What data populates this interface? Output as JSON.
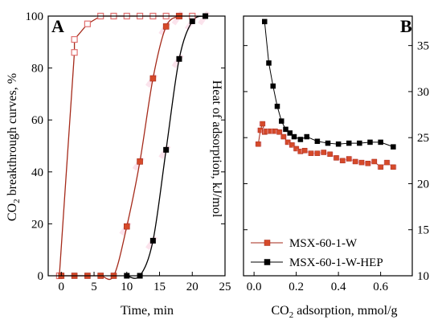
{
  "colors": {
    "msx_w": "#a52a1a",
    "msx_w_fill": "#d64a2a",
    "msx_w_hep": "#000000",
    "highlight": "#f7c0d4",
    "open_marker": "#e07070"
  },
  "chart_data": [
    {
      "type": "line",
      "panel_label": "A",
      "xlabel": "Time, min",
      "ylabel": "CO2 breakthrough curves, %",
      "ylabel_parts": {
        "base": "CO",
        "sub": "2",
        "rest": " breakthrough curves, %"
      },
      "ylabel_right": "Heat of adsorption, kJ/mol",
      "xlim": [
        -2,
        25
      ],
      "ylim": [
        0,
        100
      ],
      "xticks": [
        0,
        5,
        10,
        15,
        20,
        25
      ],
      "yticks": [
        0,
        20,
        40,
        60,
        80,
        100
      ],
      "series": [
        {
          "style": "open-square",
          "color_key": "open_marker",
          "x": [
            -0.3,
            2,
            2,
            4,
            6,
            8,
            10,
            12,
            14,
            16,
            18,
            20
          ],
          "y": [
            0,
            86,
            91,
            97,
            100,
            100,
            100,
            100,
            100,
            100,
            100,
            100
          ]
        },
        {
          "style": "filled-square",
          "color_key": "msx_w_fill",
          "x": [
            0,
            2,
            4,
            6,
            8,
            10,
            12,
            14,
            16,
            18
          ],
          "y": [
            0,
            0,
            0,
            0,
            0,
            19,
            44,
            76,
            96,
            100
          ]
        },
        {
          "style": "black-square",
          "color_key": "msx_w_hep",
          "x": [
            10,
            12,
            14,
            16,
            18,
            20,
            22
          ],
          "y": [
            0,
            0,
            13.5,
            48.5,
            83.5,
            98,
            100
          ]
        }
      ]
    },
    {
      "type": "scatter",
      "panel_label": "B",
      "xlabel": "CO2 adsorption, mmol/g",
      "xlabel_parts": {
        "base": "CO",
        "sub": "2",
        "rest": " adsorption, mmol/g"
      },
      "xlim": [
        -0.05,
        0.75
      ],
      "ylim": [
        10,
        38.2
      ],
      "xticks": [
        0.0,
        0.2,
        0.4,
        0.6
      ],
      "xtick_labels": [
        "0.0",
        "0.2",
        "0.4",
        "0.6"
      ],
      "yticks": [
        10,
        15,
        20,
        25,
        30,
        35
      ],
      "legend_position": "bottom-left",
      "series": [
        {
          "name": "MSX-60-1-W",
          "color_key": "msx_w",
          "x": [
            0.02,
            0.03,
            0.04,
            0.05,
            0.06,
            0.08,
            0.1,
            0.12,
            0.14,
            0.16,
            0.18,
            0.2,
            0.22,
            0.24,
            0.27,
            0.3,
            0.33,
            0.36,
            0.39,
            0.42,
            0.45,
            0.48,
            0.51,
            0.54,
            0.57,
            0.6,
            0.63,
            0.66
          ],
          "y": [
            24.3,
            25.8,
            26.5,
            25.6,
            25.7,
            25.7,
            25.7,
            25.6,
            25.1,
            24.5,
            24.2,
            23.8,
            23.5,
            23.6,
            23.3,
            23.3,
            23.4,
            23.2,
            22.8,
            22.5,
            22.7,
            22.4,
            22.3,
            22.2,
            22.4,
            21.8,
            22.3,
            21.8
          ]
        },
        {
          "name": "MSX-60-1-W-HEP",
          "color_key": "msx_w_hep",
          "x": [
            0.05,
            0.07,
            0.09,
            0.11,
            0.13,
            0.15,
            0.17,
            0.19,
            0.22,
            0.25,
            0.3,
            0.35,
            0.4,
            0.45,
            0.5,
            0.55,
            0.6,
            0.66
          ],
          "y": [
            37.6,
            33.1,
            30.6,
            28.4,
            26.8,
            25.9,
            25.5,
            25.1,
            24.8,
            25.1,
            24.6,
            24.4,
            24.3,
            24.4,
            24.4,
            24.5,
            24.5,
            24
          ]
        }
      ]
    }
  ]
}
